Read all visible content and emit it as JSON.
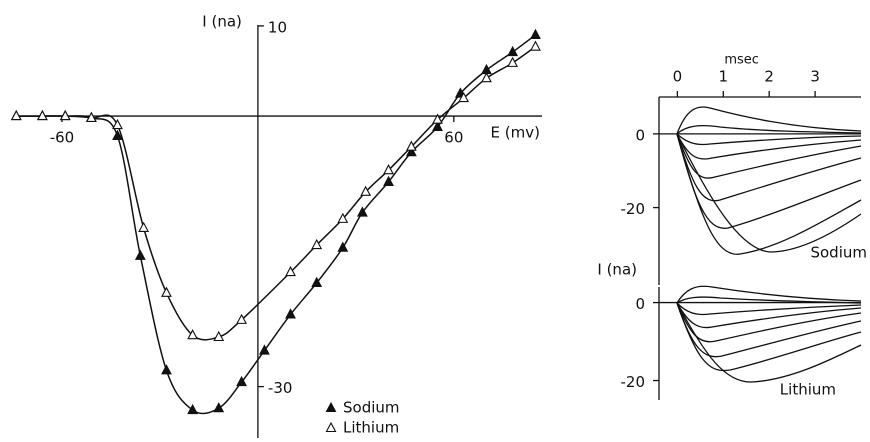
{
  "chart_data": [
    {
      "type": "line",
      "x_label": "E (mv)",
      "y_label": "I (na)",
      "xlim": [
        -75,
        87
      ],
      "ylim": [
        -35.7,
        10.1
      ],
      "xticks": [
        -60,
        60
      ],
      "yticks": [
        10,
        -30
      ],
      "series": [
        {
          "name": "Sodium",
          "color": "#111111",
          "marker": "filled-triangle",
          "x": [
            -74,
            -66,
            -59,
            -51,
            -43,
            -36,
            -28,
            -20,
            -12,
            -5,
            2,
            10,
            18,
            26,
            32,
            40,
            47,
            55,
            62,
            70,
            78,
            85
          ],
          "values": [
            0,
            0,
            0,
            -0.2,
            -2.2,
            -15.5,
            -28.2,
            -32.6,
            -32.4,
            -29.5,
            -26,
            -22,
            -18.5,
            -14.6,
            -10.7,
            -7.3,
            -4,
            -1.2,
            2.5,
            5.1,
            7.1,
            9
          ]
        },
        {
          "name": "Lithium",
          "color": "#111111",
          "marker": "open-triangle",
          "x": [
            -74,
            -66,
            -59,
            -51,
            -43,
            -35,
            -28,
            -20,
            -12,
            -5,
            10,
            18,
            26,
            33,
            40,
            47,
            55,
            63,
            70,
            78,
            85
          ],
          "values": [
            0,
            0,
            0,
            -0.2,
            -1,
            -12.4,
            -19.6,
            -24.3,
            -24.5,
            -22.6,
            -17.3,
            -14.3,
            -11.4,
            -8.4,
            -6,
            -3.4,
            -0.4,
            2,
            4.2,
            5.9,
            7.7
          ]
        }
      ]
    },
    {
      "type": "traces",
      "x_label": "msec",
      "y_label": "I (na)",
      "xlim": [
        -0.4,
        4
      ],
      "xticks": [
        0,
        1,
        2,
        3
      ],
      "panels": [
        {
          "label": "Sodium",
          "ylim": [
            -41,
            10
          ],
          "yticks": [
            0,
            -20
          ]
        },
        {
          "label": "Lithium",
          "ylim": [
            -25,
            4
          ],
          "yticks": [
            0,
            -20
          ]
        }
      ]
    }
  ]
}
